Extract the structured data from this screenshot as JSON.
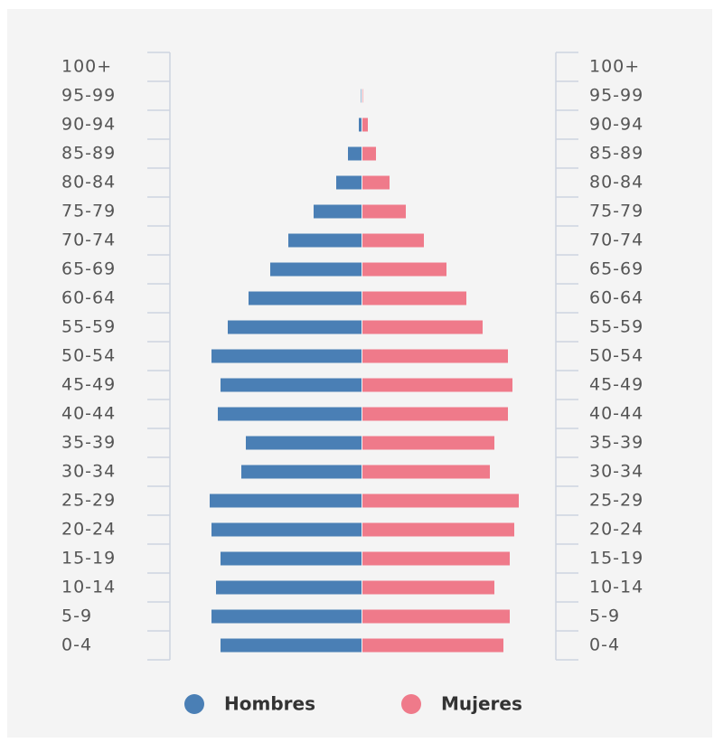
{
  "chart_data": {
    "type": "pyramid",
    "categories": [
      "100+",
      "95-99",
      "90-94",
      "85-89",
      "80-84",
      "75-79",
      "70-74",
      "65-69",
      "60-64",
      "55-59",
      "50-54",
      "45-49",
      "40-44",
      "35-39",
      "30-34",
      "25-29",
      "20-24",
      "15-19",
      "10-14",
      "5-9",
      "0-4"
    ],
    "series": [
      {
        "name": "Hombres",
        "color": "#4a7fb5",
        "values": [
          0,
          0.5,
          3,
          15,
          28,
          53,
          81,
          101,
          125,
          148,
          166,
          156,
          159,
          128,
          133,
          168,
          166,
          156,
          161,
          166,
          156
        ]
      },
      {
        "name": "Mujeres",
        "color": "#ef7a8a",
        "values": [
          0,
          0.5,
          6,
          15,
          30,
          48,
          68,
          93,
          115,
          133,
          161,
          166,
          161,
          146,
          141,
          173,
          168,
          163,
          146,
          163,
          156
        ]
      }
    ],
    "xlim": [
      0,
      180
    ]
  }
}
